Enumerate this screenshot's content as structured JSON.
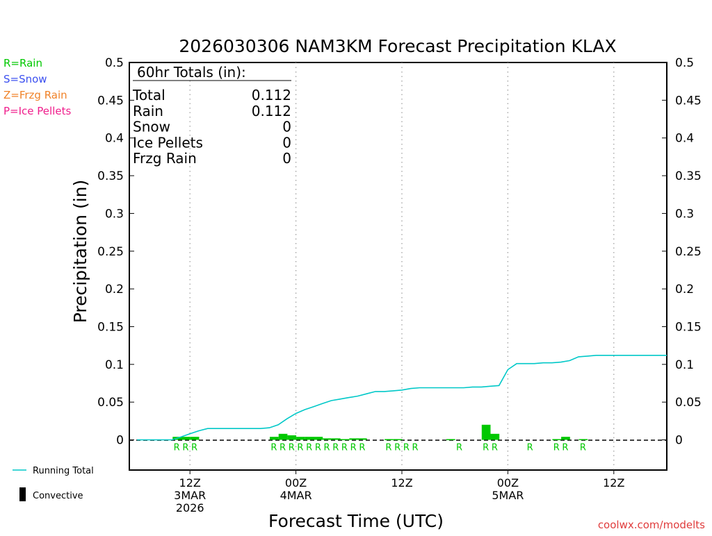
{
  "chart_data": {
    "type": "bar",
    "title": "2026030306 NAM3KM Forecast Precipitation KLAX",
    "xlabel": "Forecast Time (UTC)",
    "ylabel": "Precipitation (in)",
    "ylim": [
      -0.04,
      0.5
    ],
    "xlim": [
      0,
      60
    ],
    "y_ticks": [
      "0",
      "0.05",
      "0.1",
      "0.15",
      "0.2",
      "0.25",
      "0.3",
      "0.35",
      "0.4",
      "0.45",
      "0.5"
    ],
    "y_tick_values": [
      0,
      0.05,
      0.1,
      0.15,
      0.2,
      0.25,
      0.3,
      0.35,
      0.4,
      0.45,
      0.5
    ],
    "x_ticks": [
      {
        "hour": 6,
        "lines": [
          "12Z",
          "3MAR",
          "2026"
        ]
      },
      {
        "hour": 18,
        "lines": [
          "00Z",
          "4MAR"
        ]
      },
      {
        "hour": 30,
        "lines": [
          "12Z"
        ]
      },
      {
        "hour": 42,
        "lines": [
          "00Z",
          "5MAR"
        ]
      },
      {
        "hour": 54,
        "lines": [
          "12Z"
        ]
      }
    ],
    "grid": "dotted vertical at x ticks",
    "hours": [
      1,
      2,
      3,
      4,
      5,
      6,
      7,
      8,
      9,
      10,
      11,
      12,
      13,
      14,
      15,
      16,
      17,
      18,
      19,
      20,
      21,
      22,
      23,
      24,
      25,
      26,
      27,
      28,
      29,
      30,
      31,
      32,
      33,
      34,
      35,
      36,
      37,
      38,
      39,
      40,
      41,
      42,
      43,
      44,
      45,
      46,
      47,
      48,
      49,
      50,
      51,
      52,
      53,
      54,
      55,
      56,
      57,
      58,
      59,
      60
    ],
    "series": [
      {
        "name": "Hourly Precipitation (in)",
        "type": "bar",
        "color": "#00c800",
        "values": [
          0,
          0,
          0,
          0,
          0.004,
          0.004,
          0.004,
          0,
          0,
          0,
          0,
          0,
          0,
          0,
          0,
          0.004,
          0.008,
          0.006,
          0.004,
          0.004,
          0.004,
          0.002,
          0.002,
          0.001,
          0.002,
          0.002,
          0,
          0,
          0.001,
          0.001,
          0,
          0,
          0,
          0,
          0,
          0.001,
          0,
          0,
          0,
          0.02,
          0.008,
          0,
          0,
          0,
          0,
          0,
          0,
          0.001,
          0.004,
          0,
          0.001,
          0,
          0,
          0,
          0,
          0,
          0,
          0,
          0,
          0
        ]
      },
      {
        "name": "Running Total",
        "type": "line",
        "color": "#00c8c8",
        "values": [
          0,
          0,
          0,
          0,
          0.004,
          0.008,
          0.012,
          0.015,
          0.015,
          0.015,
          0.015,
          0.015,
          0.015,
          0.015,
          0.016,
          0.02,
          0.028,
          0.035,
          0.04,
          0.044,
          0.048,
          0.052,
          0.054,
          0.056,
          0.058,
          0.061,
          0.064,
          0.064,
          0.065,
          0.066,
          0.068,
          0.069,
          0.069,
          0.069,
          0.069,
          0.069,
          0.069,
          0.07,
          0.07,
          0.071,
          0.072,
          0.093,
          0.101,
          0.101,
          0.101,
          0.102,
          0.102,
          0.103,
          0.105,
          0.11,
          0.111,
          0.112,
          0.112,
          0.112,
          0.112,
          0.112,
          0.112,
          0.112,
          0.112,
          0.112
        ]
      }
    ],
    "type_markers": [
      {
        "hour": 5,
        "label": "R"
      },
      {
        "hour": 6,
        "label": "R"
      },
      {
        "hour": 7,
        "label": "R"
      },
      {
        "hour": 16,
        "label": "R"
      },
      {
        "hour": 17,
        "label": "R"
      },
      {
        "hour": 18,
        "label": "R"
      },
      {
        "hour": 19,
        "label": "R"
      },
      {
        "hour": 20,
        "label": "R"
      },
      {
        "hour": 21,
        "label": "R"
      },
      {
        "hour": 22,
        "label": "R"
      },
      {
        "hour": 23,
        "label": "R"
      },
      {
        "hour": 24,
        "label": "R"
      },
      {
        "hour": 25,
        "label": "R"
      },
      {
        "hour": 26,
        "label": "R"
      },
      {
        "hour": 29,
        "label": "R"
      },
      {
        "hour": 30,
        "label": "R"
      },
      {
        "hour": 31,
        "label": "R"
      },
      {
        "hour": 32,
        "label": "R"
      },
      {
        "hour": 37,
        "label": "R"
      },
      {
        "hour": 40,
        "label": "R"
      },
      {
        "hour": 41,
        "label": "R"
      },
      {
        "hour": 45,
        "label": "R"
      },
      {
        "hour": 48,
        "label": "R"
      },
      {
        "hour": 49,
        "label": "R"
      },
      {
        "hour": 51,
        "label": "R"
      }
    ],
    "totals_box": {
      "heading": "60hr Totals (in):",
      "rows": [
        {
          "label": "Total",
          "value": "0.112"
        },
        {
          "label": "Rain",
          "value": "0.112"
        },
        {
          "label": "Snow",
          "value": "0"
        },
        {
          "label": "Ice Pellets",
          "value": "0"
        },
        {
          "label": "Frzg Rain",
          "value": "0"
        }
      ]
    },
    "type_legend": [
      {
        "label": "R=Rain",
        "color": "#00c800"
      },
      {
        "label": "S=Snow",
        "color": "#3c50f0"
      },
      {
        "label": "Z=Frzg Rain",
        "color": "#f08228"
      },
      {
        "label": "P=Ice Pellets",
        "color": "#f01e8c"
      }
    ],
    "bottom_legend": [
      {
        "label": "Running Total",
        "color": "#00c8c8",
        "symbol": "line"
      },
      {
        "label": "Convective",
        "color": "#000000",
        "symbol": "bar"
      }
    ],
    "credit": "coolwx.com/modelts",
    "credit_color": "#e03c3c"
  }
}
